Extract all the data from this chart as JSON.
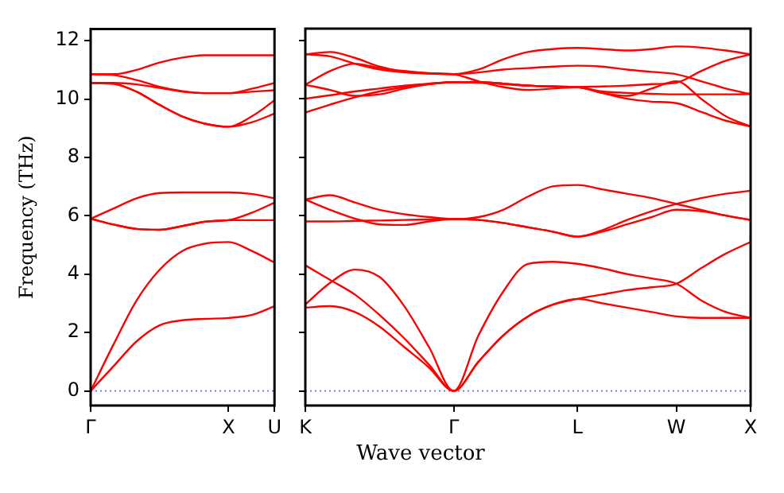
{
  "chart_data": [
    {
      "type": "line",
      "ylabel": "Frequency (THz)",
      "ylim": [
        -0.5,
        12.4
      ],
      "categories": [
        "Γ",
        null,
        null,
        null,
        null,
        null,
        "X",
        null,
        "U"
      ],
      "yticks": [
        0,
        2,
        4,
        6,
        8,
        10,
        12
      ],
      "ref_lines": [
        {
          "axis": "y",
          "value": 0,
          "color": "#6666ff",
          "line_style": "dotted"
        }
      ],
      "series": [
        {
          "color": "#ff0000",
          "values": [
            0,
            0.85,
            1.7,
            2.25,
            2.42,
            2.47,
            2.5,
            2.6,
            2.9
          ]
        },
        {
          "color": "#ff0000",
          "values": [
            0,
            1.6,
            3.1,
            4.15,
            4.8,
            5.05,
            5.1,
            4.8,
            4.4
          ]
        },
        {
          "color": "#ff0000",
          "values": [
            5.9,
            5.7,
            5.55,
            5.52,
            5.65,
            5.8,
            5.85,
            5.85,
            5.85
          ]
        },
        {
          "color": "#ff0000",
          "values": [
            5.9,
            5.7,
            5.55,
            5.52,
            5.65,
            5.8,
            5.85,
            6.1,
            6.45
          ]
        },
        {
          "color": "#ff0000",
          "values": [
            5.9,
            6.25,
            6.6,
            6.78,
            6.8,
            6.8,
            6.8,
            6.75,
            6.6
          ]
        },
        {
          "color": "#ff0000",
          "values": [
            10.85,
            10.85,
            11.0,
            11.25,
            11.42,
            11.5,
            11.5,
            11.5,
            11.5
          ]
        },
        {
          "color": "#ff0000",
          "values": [
            10.85,
            10.82,
            10.65,
            10.42,
            10.27,
            10.2,
            10.2,
            10.35,
            10.55
          ]
        },
        {
          "color": "#ff0000",
          "values": [
            10.55,
            10.55,
            10.5,
            10.38,
            10.25,
            10.2,
            10.2,
            10.25,
            10.3
          ]
        },
        {
          "color": "#ff0000",
          "values": [
            10.55,
            10.52,
            10.25,
            9.8,
            9.4,
            9.15,
            9.05,
            9.4,
            9.95
          ]
        },
        {
          "color": "#ff0000",
          "values": [
            10.55,
            10.52,
            10.25,
            9.8,
            9.4,
            9.15,
            9.05,
            9.2,
            9.5
          ]
        }
      ]
    },
    {
      "type": "line",
      "xlabel": "Wave vector",
      "ylim": [
        -0.5,
        12.4
      ],
      "tick_labels": "x",
      "categories": [
        "K",
        null,
        null,
        null,
        null,
        null,
        "Γ",
        null,
        null,
        null,
        null,
        "L",
        null,
        null,
        null,
        "W",
        null,
        null,
        "X"
      ],
      "yticks": [
        0,
        2,
        4,
        6,
        8,
        10,
        12
      ],
      "ref_lines": [
        {
          "axis": "y",
          "value": 0,
          "color": "#6666ff",
          "line_style": "dotted"
        }
      ],
      "series": [
        {
          "color": "#ff0000",
          "values": [
            2.85,
            2.9,
            2.7,
            2.2,
            1.5,
            0.8,
            0,
            1.0,
            1.9,
            2.55,
            2.95,
            3.15,
            3.0,
            2.85,
            2.7,
            2.55,
            2.5,
            2.5,
            2.5
          ]
        },
        {
          "color": "#ff0000",
          "values": [
            2.96,
            3.7,
            4.15,
            3.9,
            2.9,
            1.5,
            0,
            1.0,
            1.9,
            2.55,
            2.95,
            3.15,
            3.3,
            3.45,
            3.55,
            3.67,
            4.2,
            4.7,
            5.1
          ]
        },
        {
          "color": "#ff0000",
          "values": [
            4.3,
            3.8,
            3.3,
            2.6,
            1.8,
            0.9,
            0,
            1.9,
            3.4,
            4.35,
            4.42,
            4.35,
            4.2,
            4.0,
            3.85,
            3.67,
            3.1,
            2.7,
            2.5
          ]
        },
        {
          "color": "#ff0000",
          "values": [
            6.55,
            6.7,
            6.45,
            6.2,
            6.05,
            5.95,
            5.88,
            5.95,
            6.2,
            6.65,
            7.0,
            7.05,
            6.9,
            6.75,
            6.6,
            6.4,
            6.2,
            6.0,
            5.85
          ]
        },
        {
          "color": "#ff0000",
          "values": [
            6.55,
            6.2,
            5.9,
            5.7,
            5.68,
            5.8,
            5.88,
            5.85,
            5.75,
            5.6,
            5.45,
            5.28,
            5.5,
            5.85,
            6.15,
            6.4,
            6.6,
            6.75,
            6.85
          ]
        },
        {
          "color": "#ff0000",
          "values": [
            5.8,
            5.8,
            5.82,
            5.83,
            5.85,
            5.87,
            5.88,
            5.85,
            5.75,
            5.6,
            5.45,
            5.28,
            5.45,
            5.7,
            5.95,
            6.2,
            6.15,
            6.0,
            5.85
          ]
        },
        {
          "color": "#ff0000",
          "values": [
            11.52,
            11.6,
            11.4,
            11.1,
            10.92,
            10.86,
            10.84,
            11.0,
            11.35,
            11.6,
            11.7,
            11.74,
            11.7,
            11.65,
            11.7,
            11.79,
            11.75,
            11.65,
            11.52
          ]
        },
        {
          "color": "#ff0000",
          "values": [
            11.52,
            11.45,
            11.2,
            11.0,
            10.9,
            10.86,
            10.84,
            10.9,
            11.0,
            11.05,
            11.1,
            11.13,
            11.1,
            11.0,
            10.92,
            10.84,
            10.6,
            10.35,
            10.16
          ]
        },
        {
          "color": "#ff0000",
          "values": [
            10.48,
            10.95,
            11.2,
            11.05,
            10.95,
            10.88,
            10.84,
            10.6,
            10.4,
            10.3,
            10.35,
            10.4,
            10.42,
            10.45,
            10.5,
            10.55,
            10.95,
            11.3,
            11.52
          ]
        },
        {
          "color": "#ff0000",
          "values": [
            10.48,
            10.3,
            10.1,
            10.15,
            10.35,
            10.5,
            10.57,
            10.55,
            10.5,
            10.45,
            10.42,
            10.4,
            10.2,
            10.0,
            9.9,
            9.85,
            9.55,
            9.25,
            9.05
          ]
        },
        {
          "color": "#ff0000",
          "values": [
            10.0,
            10.12,
            10.25,
            10.35,
            10.45,
            10.52,
            10.57,
            10.57,
            10.52,
            10.45,
            10.42,
            10.4,
            10.25,
            10.2,
            10.17,
            10.15,
            10.15,
            10.15,
            10.16
          ]
        },
        {
          "color": "#ff0000",
          "values": [
            9.53,
            9.8,
            10.05,
            10.25,
            10.4,
            10.5,
            10.57,
            10.57,
            10.52,
            10.45,
            10.42,
            10.4,
            10.2,
            10.1,
            10.35,
            10.6,
            10.0,
            9.4,
            9.05
          ]
        }
      ]
    }
  ]
}
